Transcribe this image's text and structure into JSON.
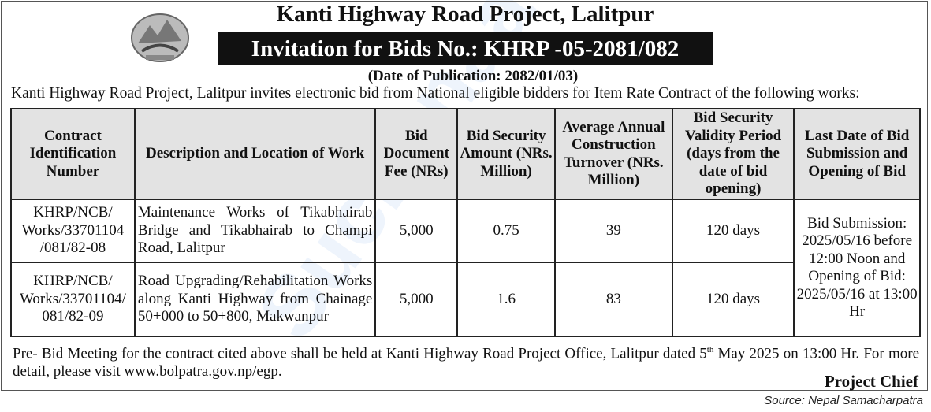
{
  "header": {
    "title": "Kanti Highway Road Project, Lalitpur",
    "ifb": "Invitation for Bids No.: KHRP -05-2081/082",
    "publication_date": "(Date of Publication: 2082/01/03)",
    "intro": "Kanti Highway Road Project, Lalitpur invites electronic bid from National eligible bidders for Item Rate Contract of the following works:"
  },
  "table": {
    "headers": [
      "Contract Identification Number",
      "Description and Location of Work",
      "Bid Document Fee (NRs)",
      "Bid Security Amount (NRs. Million)",
      "Average Annual Construction Turnover (NRs. Million)",
      "Bid Security Validity Period (days from the date of bid opening)",
      "Last Date of Bid Submission and Opening of Bid"
    ],
    "rows": [
      {
        "id": "KHRP/NCB/ Works/33701104 /081/82-08",
        "desc": "Maintenance Works of Tikabhairab Bridge and Tikabhairab to Champi Road, Lalitpur",
        "fee": "5,000",
        "security": "0.75",
        "turnover": "39",
        "validity": "120 days"
      },
      {
        "id": "KHRP/NCB/ Works/33701104/ 081/82-09",
        "desc": "Road Upgrading/Rehabilitation Works along Kanti Highway from Chainage 50+000 to 50+800, Makwanpur",
        "fee": "5,000",
        "security": "1.6",
        "turnover": "83",
        "validity": "120 days"
      }
    ],
    "last_date": "Bid Submission: 2025/05/16 before 12:00 Noon and Opening of Bid: 2025/05/16 at 13:00 Hr"
  },
  "footer": {
    "prebid_a": "Pre- Bid Meeting for the contract cited above shall be held at Kanti Highway Road Project Office, Lalitpur dated 5",
    "prebid_sup": "th",
    "prebid_b": " May 2025 on 13:00 Hr. For more detail, please visit www.bolpatra.gov.np/egp.",
    "signatory": "Project Chief",
    "source": "Source: Nepal Samacharpatra"
  },
  "watermark": "Suchanaa"
}
